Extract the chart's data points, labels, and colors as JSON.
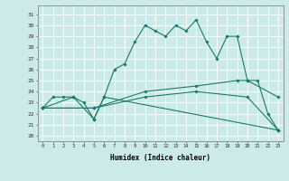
{
  "xlabel": "Humidex (Indice chaleur)",
  "xlim": [
    -0.5,
    23.5
  ],
  "ylim": [
    19.5,
    31.8
  ],
  "yticks": [
    20,
    21,
    22,
    23,
    24,
    25,
    26,
    27,
    28,
    29,
    30,
    31
  ],
  "xticks": [
    0,
    1,
    2,
    3,
    4,
    5,
    6,
    7,
    8,
    9,
    10,
    11,
    12,
    13,
    14,
    15,
    16,
    17,
    18,
    19,
    20,
    21,
    22,
    23
  ],
  "background_color": "#cceaea",
  "grid_color": "#ffffff",
  "line_color": "#1a7a6a",
  "lines": [
    {
      "x": [
        0,
        1,
        2,
        3,
        4,
        5,
        6,
        7,
        8,
        9,
        10,
        11,
        12,
        13,
        14,
        15,
        16,
        17,
        18,
        19,
        20,
        21,
        22,
        23
      ],
      "y": [
        22.5,
        23.5,
        23.5,
        23.5,
        23.0,
        21.5,
        23.5,
        26.0,
        26.5,
        28.5,
        30.0,
        29.5,
        29.0,
        30.0,
        29.5,
        30.5,
        28.5,
        27.0,
        29.0,
        29.0,
        25.0,
        25.0,
        22.0,
        20.5
      ]
    },
    {
      "x": [
        0,
        3,
        5,
        6,
        23
      ],
      "y": [
        22.5,
        23.5,
        21.5,
        23.5,
        20.5
      ]
    },
    {
      "x": [
        0,
        5,
        10,
        15,
        19,
        20,
        23
      ],
      "y": [
        22.5,
        22.5,
        24.0,
        24.5,
        25.0,
        25.0,
        23.5
      ]
    },
    {
      "x": [
        0,
        5,
        10,
        15,
        20,
        23
      ],
      "y": [
        22.5,
        22.5,
        23.5,
        24.0,
        23.5,
        20.5
      ]
    }
  ]
}
